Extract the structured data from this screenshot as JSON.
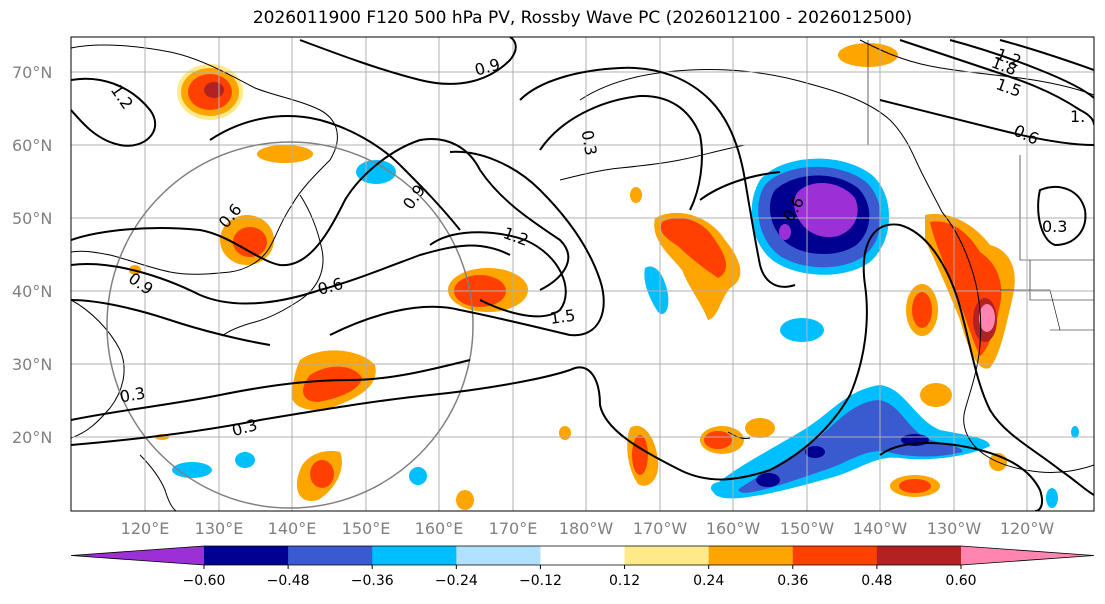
{
  "title": "2026011900 F120 500 hPa PV, Rossby Wave PC (2026012100 - 2026012500)",
  "lat_labels": [
    "70°N",
    "60°N",
    "50°N",
    "40°N",
    "30°N",
    "20°N"
  ],
  "lon_labels": [
    "120°E",
    "130°E",
    "140°E",
    "150°E",
    "160°E",
    "170°E",
    "180°W",
    "170°W",
    "160°W",
    "150°W",
    "140°W",
    "130°W",
    "120°W"
  ],
  "colorbar": {
    "ticks": [
      "−0.60",
      "−0.48",
      "−0.36",
      "−0.24",
      "−0.12",
      "0.12",
      "0.24",
      "0.36",
      "0.48",
      "0.60"
    ],
    "colors": [
      "#9b30d6",
      "#000090",
      "#3a5ad0",
      "#00bfff",
      "#b0e2ff",
      "#ffffff",
      "#ffea8a",
      "#ffa500",
      "#ff4000",
      "#b22222",
      "#ff85b0"
    ]
  },
  "contour_labels": [
    "1.2",
    "0.9",
    "0.3",
    "1.2",
    "1.8",
    "1.5",
    "1.",
    "0.6",
    "0.6",
    "0.3",
    "0.9",
    "0.6",
    "1.2",
    "1.5",
    "0.6",
    "0.3",
    "0.3",
    "0.9"
  ]
}
